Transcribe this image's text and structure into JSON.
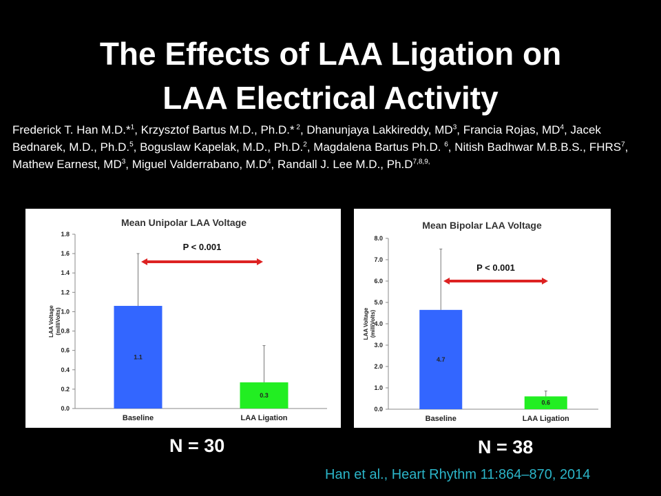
{
  "slide": {
    "title_line1": "The Effects of LAA Ligation on",
    "title_line2": "LAA Electrical Activity",
    "authors": [
      {
        "name": "Frederick T. Han M.D.*",
        "sup": "1",
        "sep": ", "
      },
      {
        "name": "Krzysztof Bartus M.D., Ph.D.*",
        "sup": " 2",
        "sep": ", "
      },
      {
        "name": "Dhanunjaya Lakkireddy, MD",
        "sup": "3",
        "sep": ", "
      },
      {
        "name": "Francia Rojas, MD",
        "sup": "4",
        "sep": ", "
      },
      {
        "name": "Jacek Bednarek, M.D., Ph.D.",
        "sup": "5",
        "sep": ", "
      },
      {
        "name": "Boguslaw Kapelak, M.D., Ph.D.",
        "sup": "2",
        "sep": ", "
      },
      {
        "name": "Magdalena Bartus Ph.D. ",
        "sup": "6",
        "sep": ", "
      },
      {
        "name": "Nitish Badhwar M.B.B.S., FHRS",
        "sup": "7",
        "sep": ", "
      },
      {
        "name": "Mathew Earnest, MD",
        "sup": "3",
        "sep": ", "
      },
      {
        "name": "Miguel Valderrabano, M.D",
        "sup": "4",
        "sep": ", "
      },
      {
        "name": "Randall J. Lee M.D., Ph.D",
        "sup": "7,8,9,",
        "sep": ""
      }
    ],
    "n_left": "N = 30",
    "n_right": "N = 38",
    "citation": "Han et al., Heart Rhythm 11:864–870, 2014"
  },
  "colors": {
    "background": "#000000",
    "baseline_bar": "#3366ff",
    "ligation_bar": "#22ee22",
    "arrow": "#dd2222",
    "citation": "#2bb5c8"
  },
  "chart_data": [
    {
      "type": "bar",
      "title": "Mean Unipolar LAA Voltage",
      "ylabel": "LAA Voltage (milliVolts)",
      "ylabel_lines": [
        "LAA Voltage",
        "(milliVolts)"
      ],
      "categories": [
        "Baseline",
        "LAA Ligation"
      ],
      "values": [
        1.06,
        0.27
      ],
      "value_labels": [
        "1.1",
        "0.3"
      ],
      "error_upper": [
        1.6,
        0.65
      ],
      "ylim": [
        0,
        1.8
      ],
      "yticks": [
        "0.0",
        "0.2",
        "0.4",
        "0.6",
        "0.8",
        "1.0",
        "1.2",
        "1.4",
        "1.6",
        "1.8"
      ],
      "annotation": "P < 0.001",
      "grid": false
    },
    {
      "type": "bar",
      "title": "Mean Bipolar LAA Voltage",
      "ylabel": "LAA Voltage (milliVolts)",
      "ylabel_lines": [
        "LAA Voltage",
        "(milliVolts)"
      ],
      "categories": [
        "Baseline",
        "LAA Ligation"
      ],
      "values": [
        4.65,
        0.6
      ],
      "value_labels": [
        "4.7",
        "0.6"
      ],
      "error_upper": [
        7.5,
        0.85
      ],
      "ylim": [
        0,
        8
      ],
      "yticks": [
        "0.0",
        "1.0",
        "2.0",
        "3.0",
        "4.0",
        "5.0",
        "6.0",
        "7.0",
        "8.0"
      ],
      "annotation": "P < 0.001",
      "grid": false
    }
  ]
}
